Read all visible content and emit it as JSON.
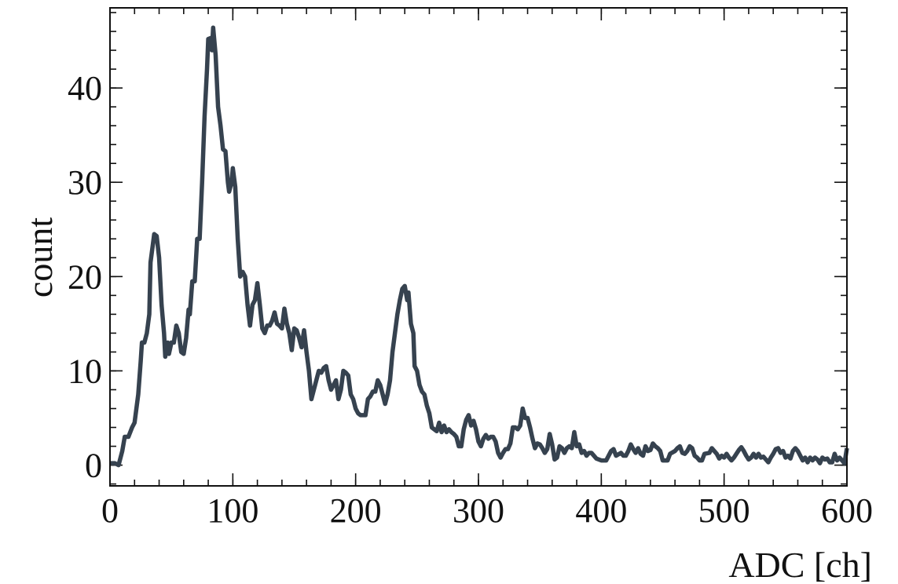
{
  "chart_data": {
    "type": "line",
    "x_label": "ADC [ch]",
    "y_label": "count",
    "color": "#36424f",
    "x": [
      0,
      4,
      7,
      10,
      12,
      15,
      18,
      20,
      23,
      25,
      26,
      28,
      30,
      32,
      33,
      35,
      36,
      38,
      40,
      42,
      44,
      45,
      47,
      48,
      50,
      52,
      54,
      56,
      58,
      60,
      62,
      64,
      65,
      67,
      69,
      71,
      73,
      75,
      77,
      79,
      80,
      82,
      83,
      84,
      86,
      88,
      90,
      92,
      94,
      96,
      97,
      99,
      100,
      102,
      104,
      106,
      108,
      110,
      112,
      114,
      116,
      118,
      120,
      122,
      124,
      126,
      128,
      130,
      132,
      134,
      136,
      138,
      140,
      142,
      144,
      146,
      148,
      150,
      152,
      154,
      156,
      158,
      160,
      162,
      164,
      166,
      168,
      170,
      172,
      174,
      176,
      178,
      180,
      182,
      184,
      186,
      188,
      190,
      192,
      194,
      196,
      198,
      200,
      202,
      204,
      208,
      210,
      212,
      214,
      216,
      218,
      220,
      222,
      224,
      226,
      228,
      230,
      232,
      234,
      236,
      238,
      240,
      242,
      243,
      245,
      247,
      248,
      250,
      252,
      254,
      256,
      258,
      260,
      262,
      264,
      266,
      268,
      270,
      272,
      274,
      276,
      278,
      280,
      282,
      284,
      286,
      288,
      290,
      292,
      294,
      296,
      298,
      300,
      302,
      304,
      306,
      308,
      310,
      312,
      314,
      316,
      318,
      320,
      322,
      324,
      326,
      328,
      330,
      332,
      334,
      336,
      338,
      340,
      342,
      344,
      346,
      348,
      350,
      352,
      354,
      356,
      358,
      360,
      362,
      364,
      366,
      368,
      370,
      372,
      374,
      376,
      378,
      380,
      382,
      384,
      386,
      388,
      390,
      392,
      394,
      396,
      400,
      404,
      406,
      408,
      410,
      412,
      416,
      418,
      420,
      422,
      424,
      426,
      428,
      430,
      432,
      434,
      436,
      438,
      440,
      442,
      444,
      446,
      448,
      450,
      454,
      456,
      460,
      462,
      464,
      466,
      468,
      470,
      472,
      474,
      476,
      478,
      480,
      482,
      484,
      488,
      490,
      492,
      494,
      496,
      498,
      500,
      502,
      504,
      506,
      508,
      510,
      512,
      514,
      516,
      518,
      520,
      522,
      524,
      526,
      528,
      530,
      532,
      534,
      536,
      538,
      540,
      542,
      544,
      546,
      548,
      550,
      552,
      554,
      556,
      558,
      560,
      562,
      564,
      566,
      568,
      570,
      572,
      574,
      576,
      578,
      580,
      582,
      584,
      586,
      588,
      590,
      592,
      594,
      596,
      598,
      600
    ],
    "values": [
      0.2,
      0.2,
      0,
      1.5,
      3,
      3,
      4,
      4.5,
      7.5,
      11,
      13,
      13,
      14,
      16,
      21.5,
      23.5,
      24.5,
      24.3,
      22,
      17,
      14,
      11.5,
      13,
      11.8,
      13,
      13,
      14.8,
      14,
      12,
      11.8,
      13.5,
      16.5,
      16,
      19.5,
      19.5,
      24,
      24,
      30,
      37,
      42,
      45.2,
      45.3,
      44,
      46.4,
      43.5,
      38,
      36,
      33.5,
      33.3,
      30,
      29,
      30,
      31.5,
      29.5,
      24,
      20,
      20.5,
      20,
      17,
      14.8,
      17,
      17.5,
      19.3,
      17,
      14.5,
      14,
      14.8,
      14.8,
      15.3,
      16.2,
      15,
      14.8,
      14.5,
      16.6,
      15,
      14,
      12.2,
      14.5,
      14.3,
      13.5,
      12.5,
      14.3,
      12,
      10,
      7,
      8,
      9,
      10,
      9.8,
      10.3,
      10.5,
      9,
      8,
      8.5,
      9,
      7,
      8,
      10,
      9.8,
      9.5,
      7.5,
      7,
      6,
      5.5,
      5.3,
      5.3,
      7,
      7.3,
      7.8,
      7.8,
      9,
      8.5,
      7.5,
      6.5,
      7.5,
      9,
      12,
      14,
      16,
      17.5,
      18.7,
      19,
      17.5,
      18.3,
      15,
      14,
      10.5,
      10,
      8.5,
      7.8,
      7.5,
      6.3,
      5.5,
      4,
      3.8,
      3.6,
      4.5,
      3.5,
      4.2,
      3.5,
      3.8,
      3.5,
      3.3,
      3,
      2,
      2,
      3.8,
      4.8,
      5.3,
      4.2,
      4.7,
      3.8,
      2.5,
      2,
      2.8,
      3.2,
      2.8,
      3,
      3,
      2.5,
      1.3,
      0.8,
      1.3,
      1.7,
      1.7,
      2.3,
      4,
      4,
      3.8,
      4.2,
      6,
      5,
      5,
      4,
      2.8,
      1.8,
      2.3,
      2.2,
      1.8,
      1.3,
      1.7,
      3.3,
      2.2,
      0.6,
      0.8,
      2,
      1.8,
      1.3,
      1.8,
      2,
      1.8,
      3.5,
      2,
      2.2,
      1.3,
      1.5,
      1,
      1.3,
      1.3,
      1,
      0.7,
      0.5,
      0.5,
      1,
      1.5,
      1.7,
      1,
      1.3,
      1,
      1,
      1.5,
      2.2,
      1.7,
      1.3,
      1.8,
      1.2,
      1,
      2,
      1.5,
      1.6,
      2.3,
      2,
      1.8,
      1.5,
      0.5,
      0.5,
      1.2,
      1.5,
      1.8,
      2,
      1.3,
      1.2,
      1.5,
      2,
      1.8,
      1,
      0.8,
      0.5,
      0.5,
      1.2,
      1.3,
      1.8,
      1.5,
      1.2,
      0.7,
      1,
      0.8,
      1.2,
      0.8,
      0.5,
      0.8,
      1.2,
      1.6,
      1.9,
      1.5,
      1,
      0.6,
      0.8,
      1.2,
      0.8,
      1.2,
      0.8,
      0.9,
      0.6,
      0.3,
      0.8,
      1.2,
      1.7,
      1.8,
      1.3,
      1.5,
      0.8,
      1,
      0.7,
      1.5,
      1.8,
      1.5,
      1,
      0.5,
      0.8,
      0.3,
      0.8,
      0.5,
      0.8,
      0.6,
      0.2,
      0.8,
      0.6,
      0.7,
      0.3,
      0.3,
      1.2,
      0.5,
      0.8,
      0.5,
      0.2,
      1.8
    ],
    "xlim": [
      0,
      600
    ],
    "xticks": [
      0,
      100,
      200,
      300,
      400,
      500,
      600
    ],
    "ylim": [
      -2.2,
      48.5
    ],
    "yticks": [
      0,
      10,
      20,
      30,
      40
    ]
  }
}
